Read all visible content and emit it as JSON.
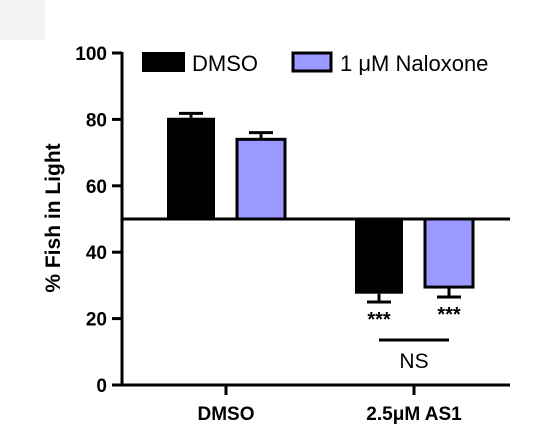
{
  "chart_data": {
    "type": "bar",
    "categories": [
      "DMSO",
      "2.5μM AS1"
    ],
    "series": [
      {
        "name": "DMSO",
        "values": [
          80.5,
          27.5
        ],
        "errors": [
          1.3,
          2.5
        ],
        "color": "#000000"
      },
      {
        "name": "1 μM Naloxone",
        "values": [
          74,
          29.5
        ],
        "errors": [
          2.0,
          3.0
        ],
        "color": "#9999ff"
      }
    ],
    "baseline": 50,
    "ylabel": "% Fish in Light",
    "xlabel": "",
    "ylim": [
      0,
      100
    ],
    "yticks": [
      0,
      20,
      40,
      60,
      80,
      100
    ],
    "legend_position": "top",
    "annotations": [
      {
        "text": "***",
        "category_index": 1,
        "series_index": 0
      },
      {
        "text": "***",
        "category_index": 1,
        "series_index": 1
      }
    ],
    "comparison": {
      "text": "NS",
      "category_index": 1
    }
  }
}
